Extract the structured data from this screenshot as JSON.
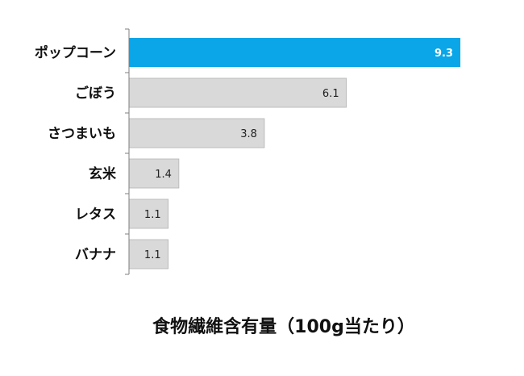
{
  "chart_data": {
    "type": "bar",
    "orientation": "horizontal",
    "categories": [
      "ポップコーン",
      "ごぼう",
      "さつまいも",
      "玄米",
      "レタス",
      "バナナ"
    ],
    "values": [
      9.3,
      6.1,
      3.8,
      1.4,
      1.1,
      1.1
    ],
    "data_labels": [
      "9.3",
      "6.1",
      "3.8",
      "1.4",
      "1.1",
      "1.1"
    ],
    "title": "",
    "xlabel": "食物繊維含有量（100g当たり）",
    "ylabel": "",
    "xlim": [
      0,
      10
    ],
    "grid": false,
    "legend": false,
    "highlight_index": 0,
    "colors": {
      "highlight": "#0aa6e8",
      "bar": "#d9d9d9",
      "bar_border": "#b3b3b3",
      "axis": "#7f7f7f"
    }
  }
}
